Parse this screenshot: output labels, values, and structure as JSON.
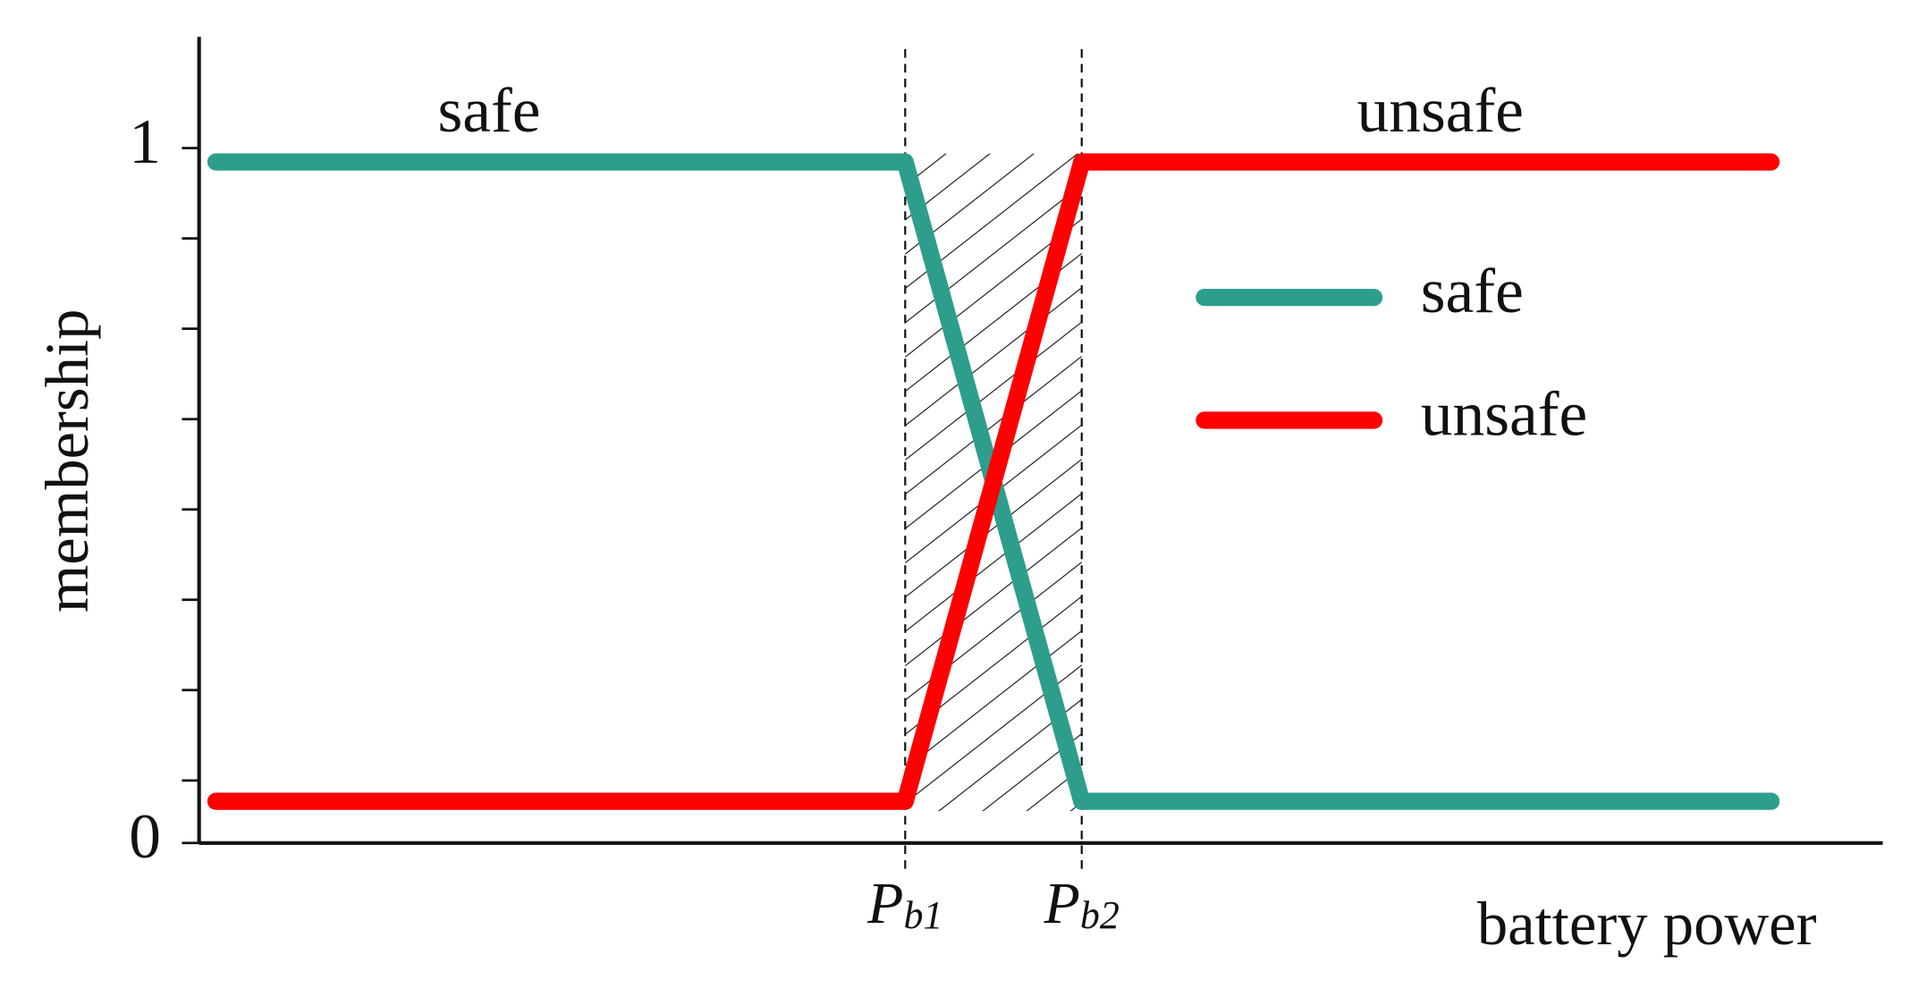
{
  "chart_data": {
    "type": "line",
    "x_label": "battery power",
    "y_label": "membership",
    "x": [
      0.1,
      4.2,
      5.25,
      9.35
    ],
    "series": [
      {
        "name": "safe",
        "color": "#2e9e8c",
        "values": [
          0.98,
          0.98,
          0.06,
          0.06
        ]
      },
      {
        "name": "unsafe",
        "color": "#ff0000",
        "values": [
          0.06,
          0.06,
          0.98,
          0.98
        ]
      }
    ],
    "xlim": [
      0,
      10
    ],
    "xticks": [
      {
        "value": 4.2,
        "label": "Pb1"
      },
      {
        "value": 5.25,
        "label": "Pb2"
      }
    ],
    "ylim": [
      0,
      1.16
    ],
    "yticks": [
      0,
      1
    ],
    "minor_yticks": [
      0.09,
      0.22,
      0.35,
      0.48,
      0.61,
      0.74,
      0.87
    ],
    "annotations": [
      "safe",
      "unsafe"
    ],
    "legend": "right"
  }
}
